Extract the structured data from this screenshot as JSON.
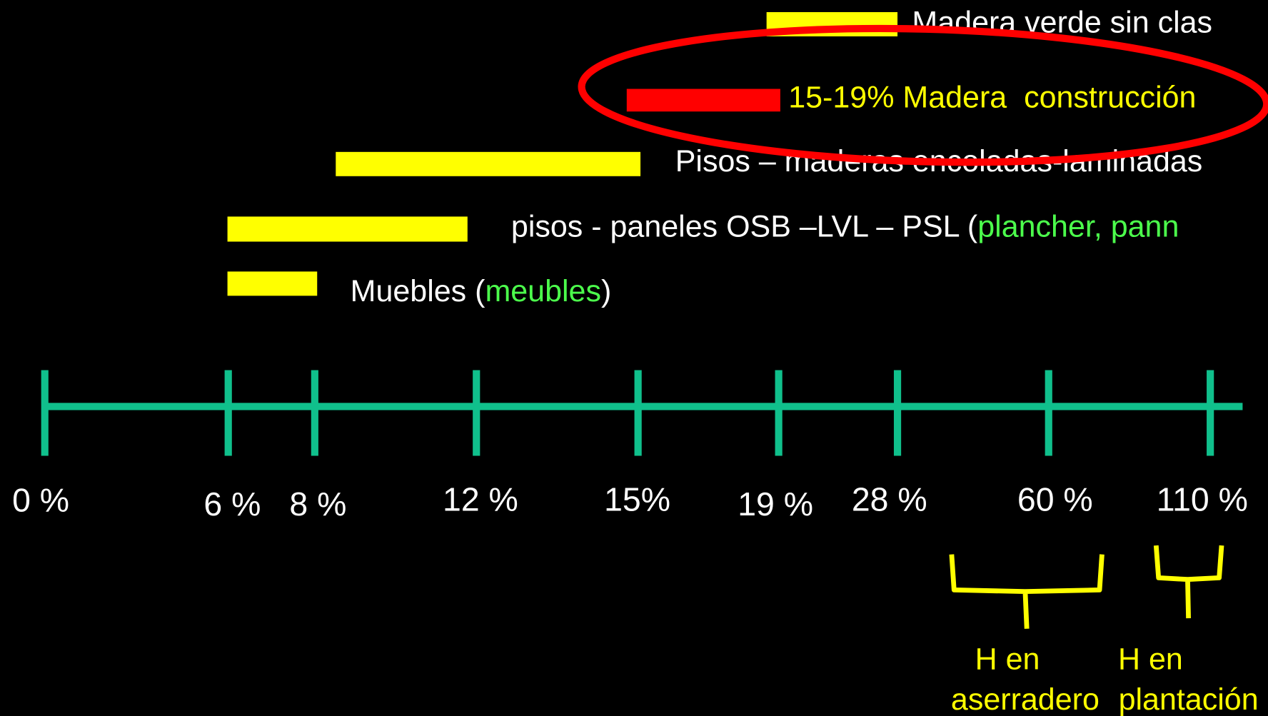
{
  "rows": [
    {
      "label": "Madera verde sin clas"
    },
    {
      "label": "15-19% Madera  construcción"
    },
    {
      "label": "Pisos – maderas encoladas-laminadas"
    },
    {
      "label": "pisos - paneles OSB –LVL – PSL (",
      "label_green": "plancher, pann"
    },
    {
      "label": "Muebles (",
      "label_green": "meubles",
      "label_end": ")"
    }
  ],
  "axis": {
    "ticks": [
      "0 %",
      "6 %",
      "8 %",
      "12 %",
      "15%",
      "19 %",
      "28 %",
      "60 %",
      "110 %"
    ]
  },
  "brackets": [
    {
      "line1": "H en",
      "line2": "aserradero"
    },
    {
      "line1": "H en",
      "line2": "plantación"
    }
  ]
}
